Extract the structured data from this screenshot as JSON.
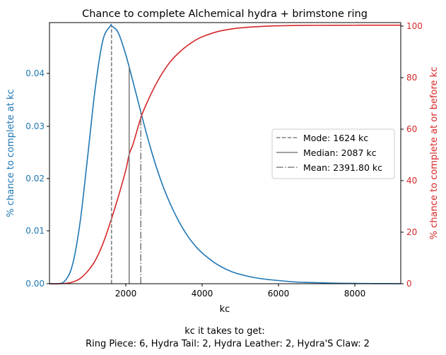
{
  "chart_data": {
    "type": "line",
    "title": "Chance to complete Alchemical hydra + brimstone ring",
    "xlabel": "kc",
    "xlim": [
      0,
      9200
    ],
    "x_ticks": [
      2000,
      4000,
      6000,
      8000
    ],
    "y_left": {
      "label": "% chance to complete at kc",
      "ylim": [
        0,
        0.0493
      ],
      "ticks": [
        0.0,
        0.01,
        0.02,
        0.03,
        0.04
      ],
      "color": "#1f77b4"
    },
    "y_right": {
      "label": "% chance to complete at or before kc",
      "ylim": [
        0,
        101
      ],
      "ticks": [
        0,
        20,
        40,
        60,
        80,
        100
      ],
      "color": "#d62728"
    },
    "series": [
      {
        "axis": "left",
        "color": "#1f77b4",
        "x": [
          0,
          200,
          400,
          600,
          800,
          1000,
          1200,
          1400,
          1600,
          1624,
          1800,
          2000,
          2200,
          2400,
          2600,
          2800,
          3000,
          3200,
          3400,
          3600,
          3800,
          4000,
          4400,
          4800,
          5200,
          5600,
          6000,
          6500,
          7000,
          7500,
          8000,
          8500,
          9200
        ],
        "values": [
          0.0,
          0.0,
          0.0005,
          0.0035,
          0.0115,
          0.024,
          0.037,
          0.046,
          0.0487,
          0.0487,
          0.0474,
          0.0432,
          0.0378,
          0.0322,
          0.0268,
          0.022,
          0.0179,
          0.0145,
          0.0116,
          0.0092,
          0.0073,
          0.0058,
          0.0036,
          0.0022,
          0.0014,
          0.0009,
          0.0006,
          0.0003,
          0.0002,
          0.0001,
          6e-05,
          3e-05,
          1e-05
        ]
      },
      {
        "axis": "right",
        "color": "#d62728",
        "x": [
          0,
          200,
          400,
          600,
          800,
          1000,
          1200,
          1400,
          1600,
          1800,
          2000,
          2087,
          2200,
          2400,
          2600,
          2800,
          3000,
          3200,
          3400,
          3600,
          3800,
          4000,
          4400,
          4800,
          5200,
          5600,
          6000,
          6500,
          7000,
          7500,
          8000,
          8500,
          9200
        ],
        "values": [
          0.0,
          0.0,
          0.1,
          0.6,
          2.0,
          4.8,
          9.0,
          15.5,
          24.0,
          33.5,
          44.0,
          50.0,
          54.5,
          64.5,
          71.5,
          77.5,
          82.5,
          86.5,
          89.5,
          92.0,
          94.0,
          95.5,
          97.5,
          98.6,
          99.2,
          99.55,
          99.75,
          99.88,
          99.94,
          99.97,
          99.98,
          99.99,
          100.0
        ]
      }
    ],
    "markers": [
      {
        "label": "Mode: 1624 kc",
        "x": 1624,
        "style": "dashed"
      },
      {
        "label": "Median: 2087 kc",
        "x": 2087,
        "style": "solid"
      },
      {
        "label": "Mean: 2391.80 kc",
        "x": 2391.8,
        "style": "dashdot"
      }
    ],
    "legend_position": "center-right",
    "caption_line1": "kc it takes to get:",
    "caption_line2": "Ring Piece: 6,  Hydra Tail: 2,  Hydra Leather: 2,  Hydra'S Claw: 2"
  },
  "tick_labels": {
    "x": [
      "2000",
      "4000",
      "6000",
      "8000"
    ],
    "y_left": [
      "0.00",
      "0.01",
      "0.02",
      "0.03",
      "0.04"
    ],
    "y_right": [
      "0",
      "20",
      "40",
      "60",
      "80",
      "100"
    ]
  }
}
